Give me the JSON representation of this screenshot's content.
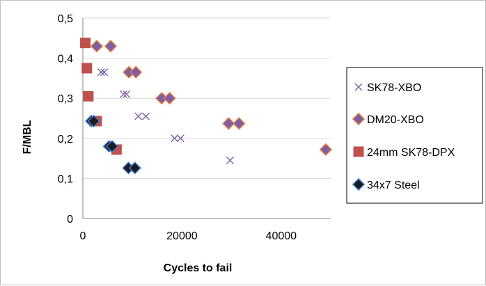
{
  "chart_data": {
    "type": "scatter",
    "title": "",
    "xlabel": "Cycles to fail",
    "ylabel": "F/MBL",
    "xlim": [
      0,
      50000
    ],
    "ylim": [
      0,
      0.5
    ],
    "x_ticks": [
      0,
      20000,
      40000
    ],
    "x_tick_labels": [
      "0",
      "20000",
      "40000"
    ],
    "y_ticks": [
      0,
      0.1,
      0.2,
      0.3,
      0.4,
      0.5
    ],
    "y_tick_labels": [
      "0",
      "0,1",
      "0,2",
      "0,3",
      "0,4",
      "0,5"
    ],
    "grid": "horizontal major gridlines",
    "legend_position": "right",
    "series": [
      {
        "name": "SK78-XBO",
        "marker": "x",
        "color": "#7a62a3",
        "points": [
          [
            3700,
            0.365
          ],
          [
            4300,
            0.365
          ],
          [
            8200,
            0.31
          ],
          [
            8800,
            0.31
          ],
          [
            11200,
            0.255
          ],
          [
            12700,
            0.255
          ],
          [
            18500,
            0.2
          ],
          [
            19700,
            0.2
          ],
          [
            29700,
            0.145
          ]
        ]
      },
      {
        "name": "DM20-XBO",
        "marker": "diamond",
        "color": "#7b5ea7",
        "edge": "#e07b39",
        "points": [
          [
            2800,
            0.43
          ],
          [
            5600,
            0.43
          ],
          [
            9300,
            0.365
          ],
          [
            10700,
            0.365
          ],
          [
            15900,
            0.3
          ],
          [
            17500,
            0.3
          ],
          [
            29400,
            0.237
          ],
          [
            31500,
            0.237
          ],
          [
            49000,
            0.172
          ]
        ]
      },
      {
        "name": "24mm SK78-DPX",
        "marker": "square",
        "color": "#c0504d",
        "points": [
          [
            500,
            0.438
          ],
          [
            800,
            0.375
          ],
          [
            1100,
            0.305
          ],
          [
            2800,
            0.243
          ],
          [
            6800,
            0.172
          ]
        ]
      },
      {
        "name": "34x7 Steel",
        "marker": "diamond",
        "color": "#1a1a1a",
        "edge": "#3b78c5",
        "points": [
          [
            1700,
            0.243
          ],
          [
            2200,
            0.243
          ],
          [
            5300,
            0.18
          ],
          [
            5900,
            0.18
          ],
          [
            9200,
            0.126
          ],
          [
            10500,
            0.126
          ]
        ]
      }
    ]
  }
}
